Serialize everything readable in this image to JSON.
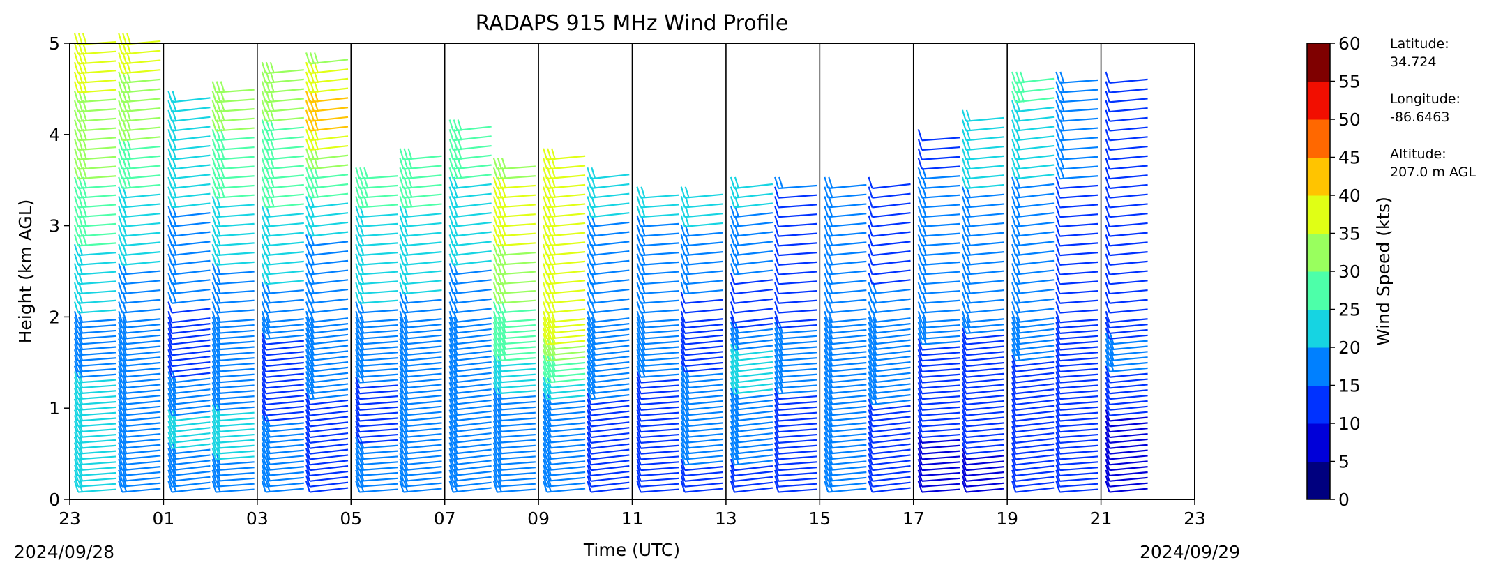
{
  "chart_data": {
    "type": "wind_barb_profile",
    "title": "RADAPS 915 MHz Wind Profile",
    "xlabel": "Time (UTC)",
    "ylabel": "Height (km AGL)",
    "x_start_date": "2024/09/28",
    "x_end_date": "2024/09/29",
    "x_tick_labels": [
      "23",
      "01",
      "03",
      "05",
      "07",
      "09",
      "11",
      "13",
      "15",
      "17",
      "19",
      "21",
      "23"
    ],
    "y_tick_labels": [
      "0",
      "1",
      "2",
      "3",
      "4",
      "5"
    ],
    "ylim": [
      0,
      5
    ],
    "colorbar": {
      "label": "Wind Speed (kts)",
      "tick_labels": [
        "0",
        "5",
        "10",
        "15",
        "20",
        "25",
        "30",
        "35",
        "40",
        "45",
        "50",
        "55",
        "60"
      ],
      "colors": [
        "#00007f",
        "#0000d9",
        "#0032ff",
        "#0080ff",
        "#16d4e2",
        "#4dffa9",
        "#99ff5e",
        "#e0ff15",
        "#ffc400",
        "#ff6800",
        "#f20e00",
        "#7f0000"
      ]
    },
    "station": {
      "latitude_label": "Latitude:",
      "latitude": "34.724",
      "longitude_label": "Longitude:",
      "longitude": "-86.6463",
      "altitude_label": "Altitude:",
      "altitude": "207.0 m AGL"
    },
    "series": [
      {
        "time": "23:00",
        "max_height_km": 5.0,
        "speed_profile_kts": [
          [
            0,
            22
          ],
          [
            0.8,
            21
          ],
          [
            1.8,
            19
          ],
          [
            3,
            27
          ],
          [
            4,
            33
          ],
          [
            5,
            38
          ]
        ]
      },
      {
        "time": "00:00",
        "max_height_km": 5.0,
        "speed_profile_kts": [
          [
            0,
            20
          ],
          [
            0.8,
            19
          ],
          [
            1.8,
            17
          ],
          [
            3,
            22
          ],
          [
            4,
            31
          ],
          [
            5,
            37
          ]
        ]
      },
      {
        "time": "01:00",
        "max_height_km": 4.4,
        "speed_profile_kts": [
          [
            0,
            18
          ],
          [
            0.8,
            21
          ],
          [
            1.6,
            12
          ],
          [
            2.5,
            18
          ],
          [
            3.5,
            21
          ],
          [
            4.4,
            22
          ]
        ]
      },
      {
        "time": "02:00",
        "max_height_km": 4.5,
        "speed_profile_kts": [
          [
            0,
            19
          ],
          [
            0.8,
            21
          ],
          [
            1.6,
            15
          ],
          [
            2.5,
            20
          ],
          [
            3.5,
            27
          ],
          [
            4.5,
            33
          ]
        ]
      },
      {
        "time": "03:00",
        "max_height_km": 4.7,
        "speed_profile_kts": [
          [
            0,
            17
          ],
          [
            0.8,
            15
          ],
          [
            1.6,
            14
          ],
          [
            2.5,
            22
          ],
          [
            3.5,
            27
          ],
          [
            4.7,
            33
          ]
        ]
      },
      {
        "time": "04:00",
        "max_height_km": 4.8,
        "speed_profile_kts": [
          [
            0,
            15
          ],
          [
            0.8,
            13
          ],
          [
            1.6,
            19
          ],
          [
            2.5,
            15
          ],
          [
            3.5,
            28
          ],
          [
            4.2,
            44
          ],
          [
            4.8,
            34
          ]
        ]
      },
      {
        "time": "05:00",
        "max_height_km": 3.6,
        "speed_profile_kts": [
          [
            0,
            18
          ],
          [
            1.0,
            13
          ],
          [
            1.8,
            19
          ],
          [
            2.5,
            21
          ],
          [
            3.6,
            28
          ]
        ]
      },
      {
        "time": "06:00",
        "max_height_km": 3.8,
        "speed_profile_kts": [
          [
            0,
            18
          ],
          [
            1.0,
            18
          ],
          [
            2.0,
            19
          ],
          [
            3.0,
            24
          ],
          [
            3.8,
            28
          ]
        ]
      },
      {
        "time": "07:00",
        "max_height_km": 4.1,
        "speed_profile_kts": [
          [
            0,
            18
          ],
          [
            1.0,
            19
          ],
          [
            2.0,
            18
          ],
          [
            3.0,
            22
          ],
          [
            4.1,
            30
          ]
        ]
      },
      {
        "time": "08:00",
        "max_height_km": 3.7,
        "speed_profile_kts": [
          [
            0,
            17
          ],
          [
            1.0,
            18
          ],
          [
            1.6,
            27
          ],
          [
            2.5,
            33
          ],
          [
            3.0,
            38
          ],
          [
            3.7,
            33
          ]
        ]
      },
      {
        "time": "09:00",
        "max_height_km": 3.8,
        "speed_profile_kts": [
          [
            0,
            17
          ],
          [
            1.0,
            19
          ],
          [
            1.8,
            38
          ],
          [
            2.5,
            36
          ],
          [
            3.0,
            35
          ],
          [
            3.8,
            37
          ]
        ]
      },
      {
        "time": "10:00",
        "max_height_km": 3.6,
        "speed_profile_kts": [
          [
            0,
            11
          ],
          [
            0.6,
            12
          ],
          [
            1.2,
            16
          ],
          [
            2.0,
            18
          ],
          [
            3.0,
            20
          ],
          [
            3.6,
            22
          ]
        ]
      },
      {
        "time": "11:00",
        "max_height_km": 3.4,
        "speed_profile_kts": [
          [
            0,
            12
          ],
          [
            1.0,
            14
          ],
          [
            2.0,
            17
          ],
          [
            3.0,
            20
          ],
          [
            3.4,
            22
          ]
        ]
      },
      {
        "time": "12:00",
        "max_height_km": 3.4,
        "speed_profile_kts": [
          [
            0,
            13
          ],
          [
            1.0,
            19
          ],
          [
            1.8,
            11
          ],
          [
            2.5,
            18
          ],
          [
            3.4,
            22
          ]
        ]
      },
      {
        "time": "13:00",
        "max_height_km": 3.5,
        "speed_profile_kts": [
          [
            0,
            14
          ],
          [
            1.0,
            17
          ],
          [
            1.4,
            25
          ],
          [
            2.0,
            12
          ],
          [
            3.0,
            19
          ],
          [
            3.5,
            23
          ]
        ]
      },
      {
        "time": "14:00",
        "max_height_km": 3.5,
        "speed_profile_kts": [
          [
            0,
            15
          ],
          [
            1.0,
            14
          ],
          [
            1.6,
            18
          ],
          [
            2.2,
            10
          ],
          [
            3.0,
            11
          ],
          [
            3.5,
            17
          ]
        ]
      },
      {
        "time": "15:00",
        "max_height_km": 3.5,
        "speed_profile_kts": [
          [
            0,
            15
          ],
          [
            1.0,
            16
          ],
          [
            2.0,
            17
          ],
          [
            3.0,
            17
          ],
          [
            3.5,
            18
          ]
        ]
      },
      {
        "time": "16:00",
        "max_height_km": 3.5,
        "speed_profile_kts": [
          [
            0,
            12
          ],
          [
            1.0,
            15
          ],
          [
            2.0,
            16
          ],
          [
            3.0,
            13
          ],
          [
            3.5,
            11
          ]
        ]
      },
      {
        "time": "17:00",
        "max_height_km": 4.0,
        "speed_profile_kts": [
          [
            0,
            8
          ],
          [
            1.0,
            11
          ],
          [
            2.0,
            17
          ],
          [
            3.0,
            20
          ],
          [
            4.0,
            11
          ]
        ]
      },
      {
        "time": "18:00",
        "max_height_km": 4.2,
        "speed_profile_kts": [
          [
            0,
            9
          ],
          [
            1.0,
            11
          ],
          [
            2.0,
            16
          ],
          [
            3.0,
            18
          ],
          [
            4.2,
            25
          ]
        ]
      },
      {
        "time": "19:00",
        "max_height_km": 4.6,
        "speed_profile_kts": [
          [
            0,
            13
          ],
          [
            1.0,
            14
          ],
          [
            2.0,
            16
          ],
          [
            3.0,
            18
          ],
          [
            4.0,
            22
          ],
          [
            4.6,
            28
          ]
        ]
      },
      {
        "time": "20:00",
        "max_height_km": 4.6,
        "speed_profile_kts": [
          [
            0,
            10
          ],
          [
            1.0,
            11
          ],
          [
            2.0,
            15
          ],
          [
            3.0,
            14
          ],
          [
            4.0,
            16
          ],
          [
            4.6,
            19
          ]
        ]
      },
      {
        "time": "21:00",
        "max_height_km": 4.6,
        "speed_profile_kts": [
          [
            0,
            5
          ],
          [
            0.8,
            9
          ],
          [
            1.5,
            16
          ],
          [
            2.5,
            12
          ],
          [
            3.5,
            13
          ],
          [
            4.6,
            15
          ]
        ]
      }
    ]
  }
}
